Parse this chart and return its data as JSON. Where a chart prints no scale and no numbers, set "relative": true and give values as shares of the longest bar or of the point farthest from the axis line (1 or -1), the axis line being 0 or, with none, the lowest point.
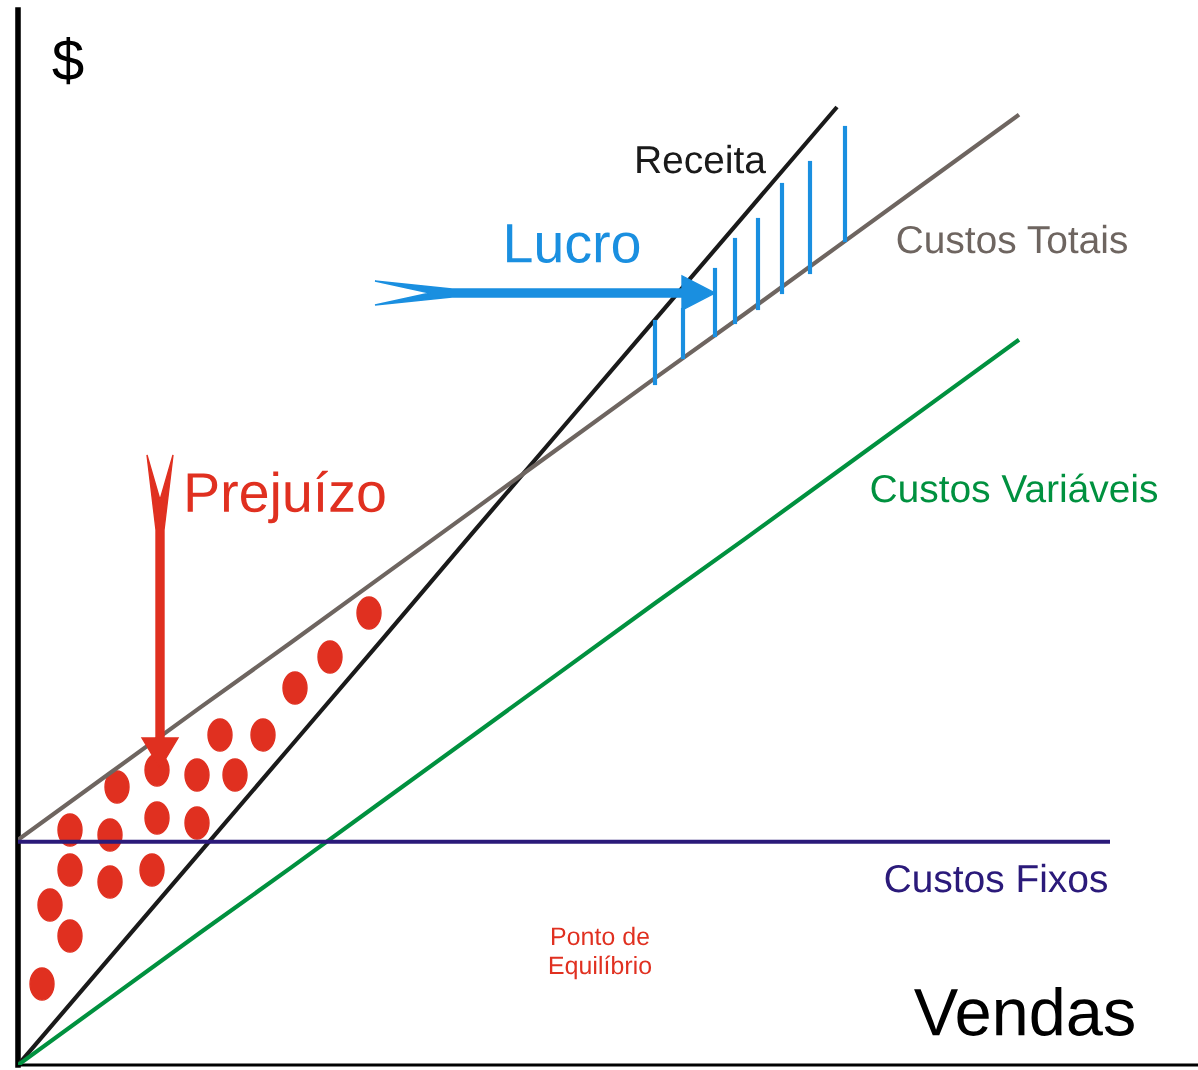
{
  "chart_data": {
    "type": "line",
    "relative": true,
    "xlabel": "Vendas",
    "ylabel": "$",
    "marker": "none",
    "line_style": "solid",
    "categories": [
      null,
      null,
      null,
      null,
      null,
      null,
      null,
      null,
      null,
      null,
      null,
      null,
      null
    ],
    "series": [
      {
        "name": "Receita",
        "color": "#1a1a1a",
        "values": [
          0,
          0.111,
          0.222,
          0.333,
          0.444,
          0.556,
          0.667,
          0.778,
          0.889,
          1.0,
          null,
          null,
          null
        ]
      },
      {
        "name": "Custos Totais",
        "color": "#6e6560",
        "values": [
          0.235,
          0.304,
          0.373,
          0.441,
          0.51,
          0.579,
          0.648,
          0.717,
          0.785,
          0.854,
          0.923,
          0.992,
          null
        ]
      },
      {
        "name": "Custos Variáveis",
        "color": "#00913f",
        "values": [
          0,
          0.069,
          0.138,
          0.206,
          0.275,
          0.344,
          0.413,
          0.482,
          0.55,
          0.619,
          0.688,
          0.757,
          null
        ]
      },
      {
        "name": "Custos Fixos",
        "color": "#2b1a7a",
        "values": [
          0.233,
          0.233,
          0.233,
          0.233,
          0.233,
          0.233,
          0.233,
          0.233,
          0.233,
          0.233,
          0.233,
          0.233,
          0.233
        ]
      }
    ],
    "annotations": [
      "Lucro",
      "Prejuízo",
      "Ponto de\nEquilíbrio"
    ]
  }
}
